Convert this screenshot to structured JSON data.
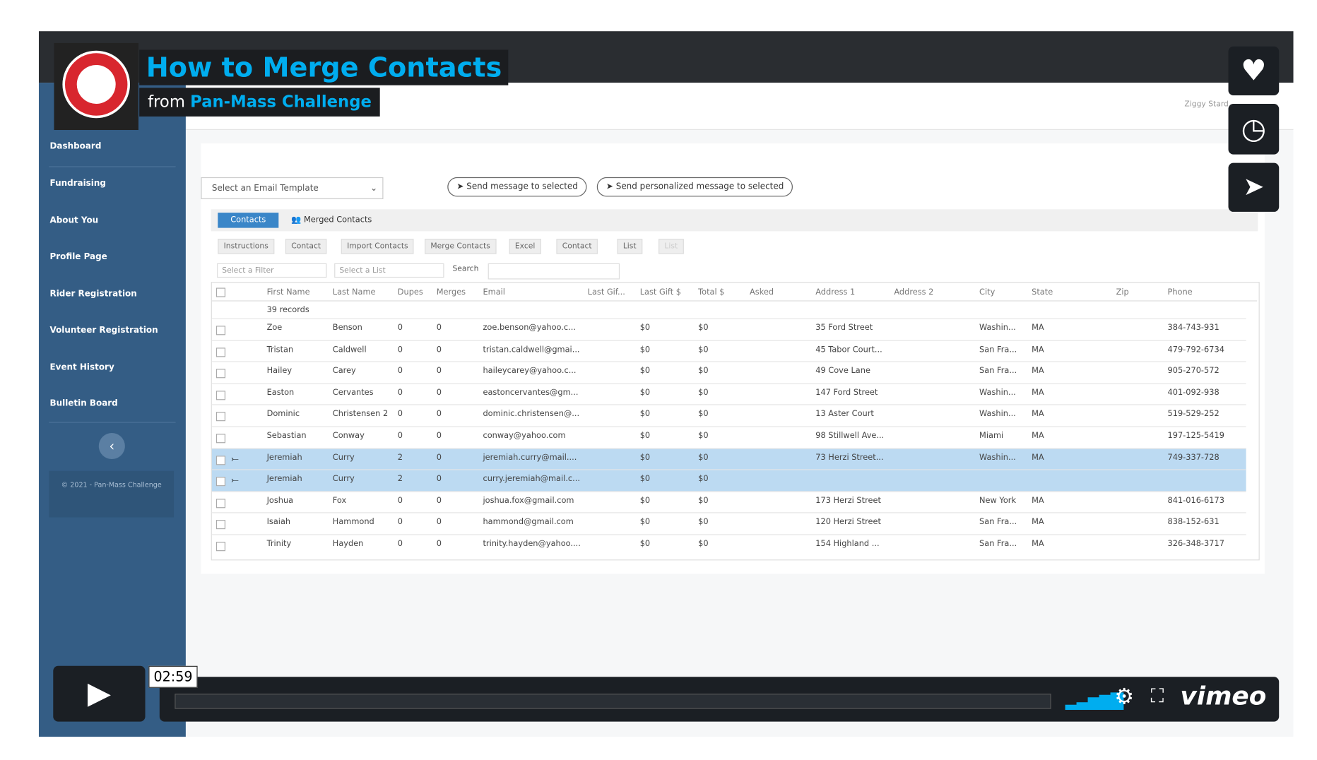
{
  "video": {
    "title": "How to Merge Contacts",
    "from": "from",
    "channel": "Pan-Mass Challenge",
    "time": "02:59",
    "brand": "vimeo"
  },
  "app": {
    "user": "Ziggy Stard",
    "nav": [
      "Dashboard",
      "Fundraising",
      "About You",
      "Profile Page",
      "Rider Registration",
      "Volunteer Registration",
      "Event History",
      "Bulletin Board"
    ],
    "footer": "© 2021 - Pan-Mass Challenge",
    "email_template": "Select an Email Template",
    "send": "Send message to selected",
    "send_personal": "Send personalized message to selected",
    "tabs": [
      "Contacts",
      "Merged Contacts"
    ],
    "toolbar": [
      "Instructions",
      "Contact",
      "Import Contacts",
      "Merge Contacts",
      "Excel",
      "Contact",
      "List",
      "List"
    ],
    "filter": "Select a Filter",
    "list": "Select a List",
    "search": "Search",
    "headers": [
      "First Name",
      "Last Name",
      "Dupes",
      "Merges",
      "Email",
      "Last Gif...",
      "Last Gift $",
      "Total $",
      "Asked",
      "Address 1",
      "Address 2",
      "City",
      "State",
      "Zip",
      "Phone"
    ],
    "records": "39 records",
    "rows": [
      [
        "Zoe",
        "Benson",
        0,
        0,
        "zoe.benson@yahoo.c...",
        null,
        "$0",
        "$0",
        null,
        "35 Ford Street",
        null,
        "Washin...",
        "MA",
        null,
        "384-743-931"
      ],
      [
        "Tristan",
        "Caldwell",
        0,
        0,
        "tristan.caldwell@gmai...",
        null,
        "$0",
        "$0",
        null,
        "45 Tabor Court...",
        null,
        "San Fra...",
        "MA",
        null,
        "479-792-6734"
      ],
      [
        "Hailey",
        "Carey",
        0,
        0,
        "haileycarey@yahoo.c...",
        null,
        "$0",
        "$0",
        null,
        "49 Cove Lane",
        null,
        "San Fra...",
        "MA",
        null,
        "905-270-572"
      ],
      [
        "Easton",
        "Cervantes",
        0,
        0,
        "eastoncervantes@gm...",
        null,
        "$0",
        "$0",
        null,
        "147 Ford Street",
        null,
        "Washin...",
        "MA",
        null,
        "401-092-938"
      ],
      [
        "Dominic",
        "Christensen 2",
        0,
        0,
        "dominic.christensen@...",
        null,
        "$0",
        "$0",
        null,
        "13 Aster Court",
        null,
        "Washin...",
        "MA",
        null,
        "519-529-252"
      ],
      [
        "Sebastian",
        "Conway",
        0,
        0,
        "conway@yahoo.com",
        null,
        "$0",
        "$0",
        null,
        "98 Stillwell Ave...",
        null,
        "Miami",
        "MA",
        null,
        "197-125-5419"
      ],
      [
        "Jeremiah",
        "Curry",
        2,
        0,
        "jeremiah.curry@mail....",
        null,
        "$0",
        "$0",
        null,
        "73 Herzi Street...",
        null,
        "Washin...",
        "MA",
        null,
        "749-337-728"
      ],
      [
        "Jeremiah",
        "Curry",
        2,
        0,
        "curry.jeremiah@mail.c...",
        null,
        "$0",
        "$0",
        null,
        null,
        null,
        null,
        null,
        null,
        null
      ],
      [
        "Joshua",
        "Fox",
        0,
        0,
        "joshua.fox@gmail.com",
        null,
        "$0",
        "$0",
        null,
        "173 Herzi Street",
        null,
        "New York",
        "MA",
        null,
        "841-016-6173"
      ],
      [
        "Isaiah",
        "Hammond",
        0,
        0,
        "hammond@gmail.com",
        null,
        "$0",
        "$0",
        null,
        "120 Herzi Street",
        null,
        "San Fra...",
        "MA",
        null,
        "838-152-631"
      ],
      [
        "Trinity",
        "Hayden",
        0,
        0,
        "trinity.hayden@yahoo....",
        null,
        "$0",
        "$0",
        null,
        "154 Highland ...",
        null,
        "San Fra...",
        "MA",
        null,
        "326-348-3717"
      ]
    ]
  }
}
